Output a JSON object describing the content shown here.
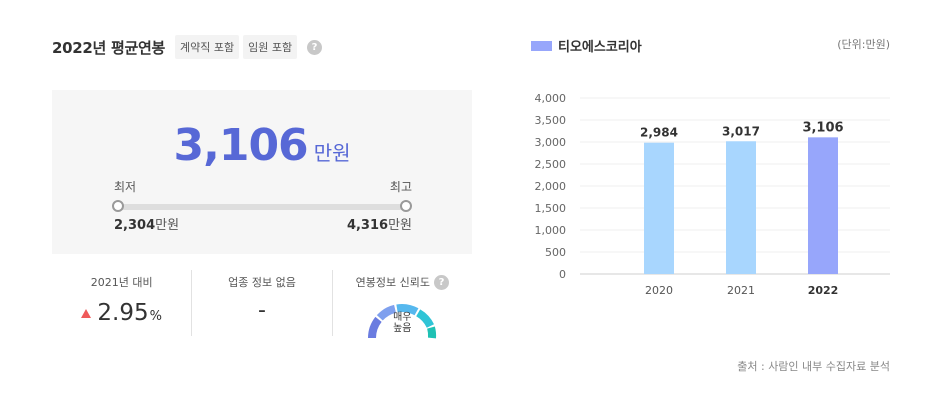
{
  "header": {
    "title": "2022년 평균연봉",
    "tags": [
      "계약직 포함",
      "임원 포함"
    ],
    "help": "?"
  },
  "salary": {
    "value": "3,106",
    "unit": "만원",
    "min_label": "최저",
    "max_label": "최고",
    "min_value": "2,304",
    "max_value": "4,316",
    "range_unit": "만원"
  },
  "stats": {
    "yoy_label": "2021년 대비",
    "yoy_value": "2.95",
    "yoy_unit": "%",
    "industry_label": "업종 정보 없음",
    "industry_value": "-",
    "reliability_label": "연봉정보 신뢰도",
    "reliability_value_line1": "매우",
    "reliability_value_line2": "높음"
  },
  "right": {
    "legend_label": "티오에스코리아",
    "unit_note": "(단위:만원)",
    "source_note": "출처 : 사람인 내부 수집자료 분석"
  },
  "colors": {
    "accent": "#5768d6",
    "bar_past": "#a8d6fe",
    "bar_current": "#97a6fb",
    "increase": "#ef5a5a"
  },
  "chart_data": {
    "type": "bar",
    "categories": [
      "2020",
      "2021",
      "2022"
    ],
    "values": [
      2984,
      3017,
      3106
    ],
    "value_labels": [
      "2,984",
      "3,017",
      "3,106"
    ],
    "y_ticks": [
      "0",
      "500",
      "1,000",
      "1,500",
      "2,000",
      "2,500",
      "3,000",
      "3,500",
      "4,000"
    ],
    "ylim": [
      0,
      4000
    ],
    "highlight_index": 2,
    "grid": true
  }
}
